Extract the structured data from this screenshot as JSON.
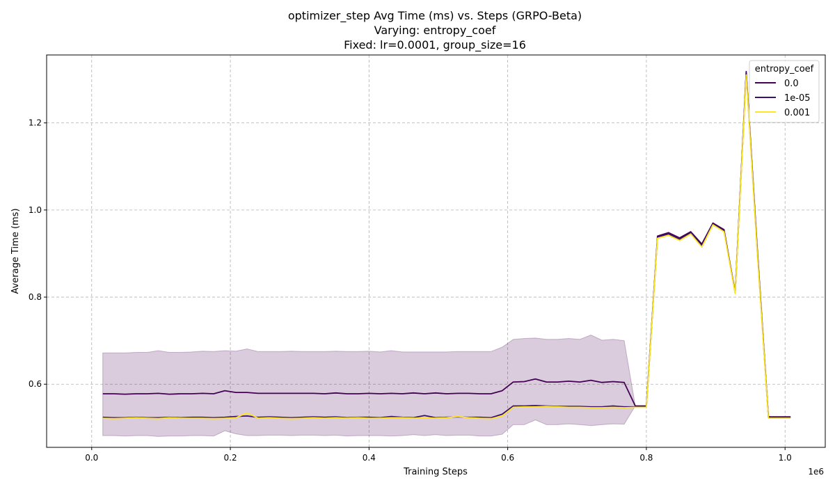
{
  "chart_data": {
    "type": "line",
    "title_lines": [
      "optimizer_step Avg Time (ms) vs. Steps (GRPO-Beta)",
      "Varying: entropy_coef",
      "Fixed: lr=0.0001, group_size=16"
    ],
    "xlabel": "Training Steps",
    "ylabel": "Average Time (ms)",
    "x_scale_label": "1e6",
    "xlim": [
      -0.065,
      1.058
    ],
    "ylim": [
      0.455,
      1.356
    ],
    "xticks": [
      0.0,
      0.2,
      0.4,
      0.6,
      0.8,
      1.0
    ],
    "xtick_labels": [
      "0.0",
      "0.2",
      "0.4",
      "0.6",
      "0.8",
      "1.0"
    ],
    "yticks": [
      0.6,
      0.8,
      1.0,
      1.2
    ],
    "ytick_labels": [
      "0.6",
      "0.8",
      "1.0",
      "1.2"
    ],
    "grid": true,
    "legend": {
      "title": "entropy_coef",
      "position": "top-right"
    },
    "x": [
      0.016,
      0.032,
      0.048,
      0.064,
      0.08,
      0.096,
      0.112,
      0.128,
      0.144,
      0.16,
      0.176,
      0.192,
      0.208,
      0.224,
      0.24,
      0.256,
      0.272,
      0.288,
      0.304,
      0.32,
      0.336,
      0.352,
      0.368,
      0.384,
      0.4,
      0.416,
      0.432,
      0.448,
      0.464,
      0.48,
      0.496,
      0.512,
      0.528,
      0.544,
      0.56,
      0.576,
      0.592,
      0.608,
      0.624,
      0.64,
      0.656,
      0.672,
      0.688,
      0.704,
      0.72,
      0.736,
      0.752,
      0.768,
      0.784,
      0.8,
      0.816,
      0.832,
      0.848,
      0.864,
      0.88,
      0.896,
      0.912,
      0.928,
      0.944,
      0.96,
      0.976,
      0.992,
      1.008
    ],
    "series": [
      {
        "name": "0.0",
        "color": "#440154",
        "values": [
          0.578,
          0.578,
          0.577,
          0.578,
          0.578,
          0.579,
          0.577,
          0.578,
          0.578,
          0.579,
          0.578,
          0.585,
          0.581,
          0.581,
          0.579,
          0.579,
          0.579,
          0.579,
          0.579,
          0.579,
          0.578,
          0.58,
          0.578,
          0.578,
          0.579,
          0.578,
          0.579,
          0.578,
          0.58,
          0.578,
          0.58,
          0.578,
          0.579,
          0.579,
          0.578,
          0.578,
          0.585,
          0.605,
          0.606,
          0.612,
          0.605,
          0.605,
          0.607,
          0.605,
          0.609,
          0.604,
          0.606,
          0.604,
          0.55,
          0.55,
          0.94,
          0.948,
          0.936,
          0.95,
          0.922,
          0.97,
          0.955,
          0.81,
          1.318,
          0.91,
          0.525,
          0.525,
          0.525
        ]
      },
      {
        "name": "1e-05",
        "color": "#3b0f6f",
        "values": [
          0.524,
          0.523,
          0.523,
          0.524,
          0.523,
          0.523,
          0.524,
          0.523,
          0.524,
          0.524,
          0.523,
          0.524,
          0.526,
          0.527,
          0.524,
          0.525,
          0.524,
          0.523,
          0.524,
          0.525,
          0.524,
          0.525,
          0.523,
          0.524,
          0.524,
          0.523,
          0.526,
          0.524,
          0.523,
          0.528,
          0.523,
          0.524,
          0.525,
          0.524,
          0.524,
          0.523,
          0.531,
          0.55,
          0.55,
          0.551,
          0.55,
          0.549,
          0.549,
          0.549,
          0.548,
          0.548,
          0.55,
          0.548,
          0.548,
          0.548,
          0.938,
          0.945,
          0.933,
          0.948,
          0.918,
          0.968,
          0.953,
          0.81,
          1.315,
          0.905,
          0.524,
          0.524,
          0.524
        ]
      },
      {
        "name": "0.001",
        "color": "#fde725",
        "values": [
          0.522,
          0.521,
          0.522,
          0.523,
          0.522,
          0.521,
          0.523,
          0.522,
          0.522,
          0.522,
          0.521,
          0.522,
          0.523,
          0.534,
          0.522,
          0.523,
          0.522,
          0.521,
          0.522,
          0.523,
          0.522,
          0.523,
          0.522,
          0.523,
          0.522,
          0.522,
          0.523,
          0.523,
          0.522,
          0.523,
          0.522,
          0.523,
          0.526,
          0.523,
          0.522,
          0.521,
          0.527,
          0.547,
          0.548,
          0.548,
          0.549,
          0.548,
          0.547,
          0.547,
          0.546,
          0.546,
          0.547,
          0.546,
          0.547,
          0.547,
          0.935,
          0.942,
          0.93,
          0.945,
          0.915,
          0.966,
          0.95,
          0.808,
          1.31,
          0.9,
          0.522,
          0.522,
          0.522
        ]
      }
    ],
    "confidence_band": {
      "color": "#440154",
      "x": [
        0.016,
        0.032,
        0.048,
        0.064,
        0.08,
        0.096,
        0.112,
        0.128,
        0.144,
        0.16,
        0.176,
        0.192,
        0.208,
        0.224,
        0.24,
        0.256,
        0.272,
        0.288,
        0.304,
        0.32,
        0.336,
        0.352,
        0.368,
        0.384,
        0.4,
        0.416,
        0.432,
        0.448,
        0.464,
        0.48,
        0.496,
        0.512,
        0.528,
        0.544,
        0.56,
        0.576,
        0.592,
        0.608,
        0.624,
        0.64,
        0.656,
        0.672,
        0.688,
        0.704,
        0.72,
        0.736,
        0.752,
        0.768,
        0.784,
        0.8
      ],
      "upper": [
        0.672,
        0.672,
        0.672,
        0.673,
        0.673,
        0.677,
        0.673,
        0.673,
        0.674,
        0.676,
        0.675,
        0.677,
        0.676,
        0.681,
        0.675,
        0.675,
        0.675,
        0.676,
        0.675,
        0.675,
        0.675,
        0.676,
        0.675,
        0.675,
        0.676,
        0.674,
        0.677,
        0.674,
        0.674,
        0.674,
        0.674,
        0.674,
        0.675,
        0.675,
        0.675,
        0.675,
        0.685,
        0.703,
        0.705,
        0.706,
        0.703,
        0.703,
        0.705,
        0.703,
        0.713,
        0.701,
        0.703,
        0.7,
        0.55,
        0.55
      ],
      "lower": [
        0.482,
        0.482,
        0.481,
        0.482,
        0.482,
        0.48,
        0.481,
        0.481,
        0.482,
        0.482,
        0.481,
        0.493,
        0.486,
        0.482,
        0.482,
        0.483,
        0.483,
        0.482,
        0.483,
        0.483,
        0.482,
        0.483,
        0.481,
        0.482,
        0.482,
        0.482,
        0.481,
        0.482,
        0.484,
        0.482,
        0.484,
        0.482,
        0.483,
        0.483,
        0.481,
        0.481,
        0.485,
        0.507,
        0.507,
        0.518,
        0.507,
        0.507,
        0.509,
        0.507,
        0.505,
        0.507,
        0.509,
        0.508,
        0.55,
        0.55
      ]
    }
  }
}
